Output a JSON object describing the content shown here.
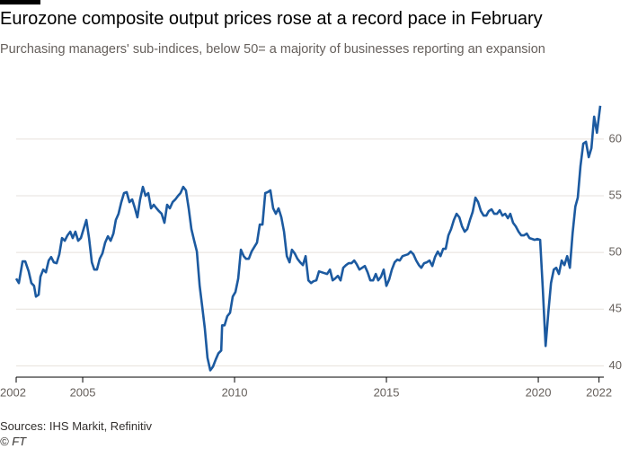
{
  "chart_data": {
    "type": "line",
    "title": "Eurozone composite output prices rose at a record pace in February",
    "subtitle": "Purchasing managers' sub-indices, below 50= a majority of businesses reporting an expansion",
    "source": "Sources: IHS Markit, Refinitiv",
    "credit": "© FT",
    "x": [
      2002.81,
      2002.9,
      2003.02,
      2003.11,
      2003.22,
      2003.31,
      2003.4,
      2003.46,
      2003.55,
      2003.61,
      2003.7,
      2003.79,
      2003.88,
      2003.96,
      2004.05,
      2004.14,
      2004.23,
      2004.32,
      2004.41,
      2004.5,
      2004.59,
      2004.67,
      2004.76,
      2004.85,
      2004.94,
      2005.03,
      2005.12,
      2005.21,
      2005.3,
      2005.38,
      2005.47,
      2005.56,
      2005.65,
      2005.74,
      2005.83,
      2005.92,
      2006.01,
      2006.09,
      2006.18,
      2006.27,
      2006.36,
      2006.45,
      2006.54,
      2006.63,
      2006.72,
      2006.8,
      2006.89,
      2006.98,
      2007.07,
      2007.16,
      2007.25,
      2007.34,
      2007.43,
      2007.51,
      2007.6,
      2007.69,
      2007.78,
      2007.87,
      2007.96,
      2008.05,
      2008.14,
      2008.22,
      2008.31,
      2008.4,
      2008.49,
      2008.58,
      2008.67,
      2008.76,
      2008.85,
      2008.93,
      2009.02,
      2009.11,
      2009.2,
      2009.29,
      2009.38,
      2009.47,
      2009.56,
      2009.59,
      2009.67,
      2009.76,
      2009.85,
      2009.94,
      2010.03,
      2010.12,
      2010.21,
      2010.3,
      2010.38,
      2010.47,
      2010.56,
      2010.65,
      2010.74,
      2010.83,
      2010.92,
      2011.01,
      2011.09,
      2011.18,
      2011.27,
      2011.36,
      2011.45,
      2011.54,
      2011.63,
      2011.72,
      2011.81,
      2011.89,
      2011.98,
      2012.07,
      2012.16,
      2012.25,
      2012.34,
      2012.43,
      2012.52,
      2012.6,
      2012.69,
      2012.78,
      2012.87,
      2012.96,
      2013.05,
      2013.14,
      2013.23,
      2013.31,
      2013.4,
      2013.49,
      2013.58,
      2013.67,
      2013.76,
      2013.85,
      2013.94,
      2014.02,
      2014.11,
      2014.2,
      2014.29,
      2014.38,
      2014.47,
      2014.56,
      2014.65,
      2014.73,
      2014.82,
      2014.91,
      2015.0,
      2015.09,
      2015.18,
      2015.27,
      2015.36,
      2015.44,
      2015.53,
      2015.62,
      2015.71,
      2015.8,
      2015.89,
      2015.98,
      2016.07,
      2016.15,
      2016.24,
      2016.33,
      2016.42,
      2016.51,
      2016.6,
      2016.69,
      2016.78,
      2016.87,
      2016.95,
      2017.04,
      2017.13,
      2017.22,
      2017.31,
      2017.4,
      2017.49,
      2017.58,
      2017.66,
      2017.75,
      2017.84,
      2017.93,
      2018.02,
      2018.11,
      2018.2,
      2018.29,
      2018.37,
      2018.46,
      2018.55,
      2018.64,
      2018.73,
      2018.82,
      2018.91,
      2019.0,
      2019.08,
      2019.17,
      2019.26,
      2019.35,
      2019.44,
      2019.53,
      2019.62,
      2019.71,
      2019.8,
      2019.88,
      2019.97,
      2020.06,
      2020.15,
      2020.24,
      2020.33,
      2020.42,
      2020.51,
      2020.59,
      2020.68,
      2020.77,
      2020.86,
      2020.95,
      2021.04,
      2021.13,
      2021.22,
      2021.3,
      2021.39,
      2021.48,
      2021.57,
      2021.66,
      2021.75,
      2021.84,
      2021.93,
      2022.04
    ],
    "series": [
      {
        "color": "#1c5aa0",
        "values": [
          47.7,
          47.3,
          49.21,
          49.21,
          48.33,
          47.3,
          47.06,
          46.11,
          46.27,
          47.86,
          48.49,
          48.25,
          49.29,
          49.6,
          49.13,
          49.05,
          49.84,
          51.27,
          51.03,
          51.51,
          51.83,
          51.27,
          51.83,
          51.03,
          51.27,
          52.06,
          52.86,
          51.27,
          49.13,
          48.49,
          48.49,
          49.44,
          49.92,
          50.87,
          51.43,
          51.03,
          51.67,
          52.86,
          53.41,
          54.44,
          55.24,
          55.32,
          54.44,
          54.68,
          53.89,
          53.1,
          54.68,
          55.79,
          55.0,
          55.24,
          53.89,
          54.21,
          53.89,
          53.65,
          53.41,
          52.62,
          54.21,
          53.89,
          54.44,
          54.68,
          55.0,
          55.24,
          55.79,
          55.48,
          53.89,
          52.06,
          51.03,
          50.08,
          47.06,
          45.32,
          43.33,
          40.71,
          39.6,
          39.92,
          40.56,
          41.11,
          41.35,
          43.57,
          43.57,
          44.37,
          44.68,
          46.11,
          46.51,
          47.7,
          50.24,
          49.68,
          49.44,
          49.44,
          50.08,
          50.48,
          50.87,
          52.46,
          52.46,
          55.24,
          55.32,
          55.48,
          53.89,
          53.41,
          53.89,
          53.1,
          51.83,
          49.68,
          49.13,
          50.24,
          49.92,
          49.44,
          49.13,
          48.89,
          49.68,
          47.54,
          47.3,
          47.46,
          47.54,
          48.33,
          48.25,
          48.17,
          48.1,
          48.49,
          47.54,
          47.7,
          47.94,
          47.54,
          48.65,
          48.89,
          49.05,
          49.05,
          49.29,
          48.97,
          48.49,
          48.65,
          48.81,
          48.25,
          47.54,
          47.54,
          48.1,
          47.54,
          47.86,
          48.49,
          47.06,
          47.62,
          48.49,
          49.13,
          49.37,
          49.29,
          49.68,
          49.76,
          49.84,
          50.08,
          49.84,
          49.29,
          48.89,
          48.65,
          49.05,
          49.13,
          49.29,
          48.81,
          49.6,
          50.08,
          49.68,
          50.32,
          50.32,
          51.51,
          52.06,
          52.86,
          53.41,
          53.1,
          52.3,
          51.83,
          52.06,
          52.86,
          53.57,
          54.84,
          54.44,
          53.65,
          53.25,
          53.25,
          53.65,
          53.81,
          53.41,
          53.41,
          53.73,
          53.25,
          53.41,
          53.02,
          53.41,
          52.62,
          52.3,
          51.83,
          51.51,
          51.51,
          51.67,
          51.27,
          51.19,
          51.11,
          51.19,
          51.11,
          46.75,
          41.75,
          44.68,
          47.3,
          48.49,
          48.65,
          48.1,
          49.29,
          48.89,
          49.68,
          48.65,
          51.67,
          54.05,
          54.84,
          57.62,
          59.6,
          59.76,
          58.41,
          59.21,
          61.98,
          60.56,
          62.94
        ]
      }
    ],
    "xlim": [
      2002.81,
      2022.04
    ],
    "xticks": [
      {
        "value": 2002.81,
        "label": "2002"
      },
      2005,
      2010,
      2015,
      2020,
      2022
    ],
    "ylim": [
      39,
      63.4
    ],
    "yticks": [
      40,
      45,
      50,
      55,
      60
    ],
    "grid": true
  }
}
